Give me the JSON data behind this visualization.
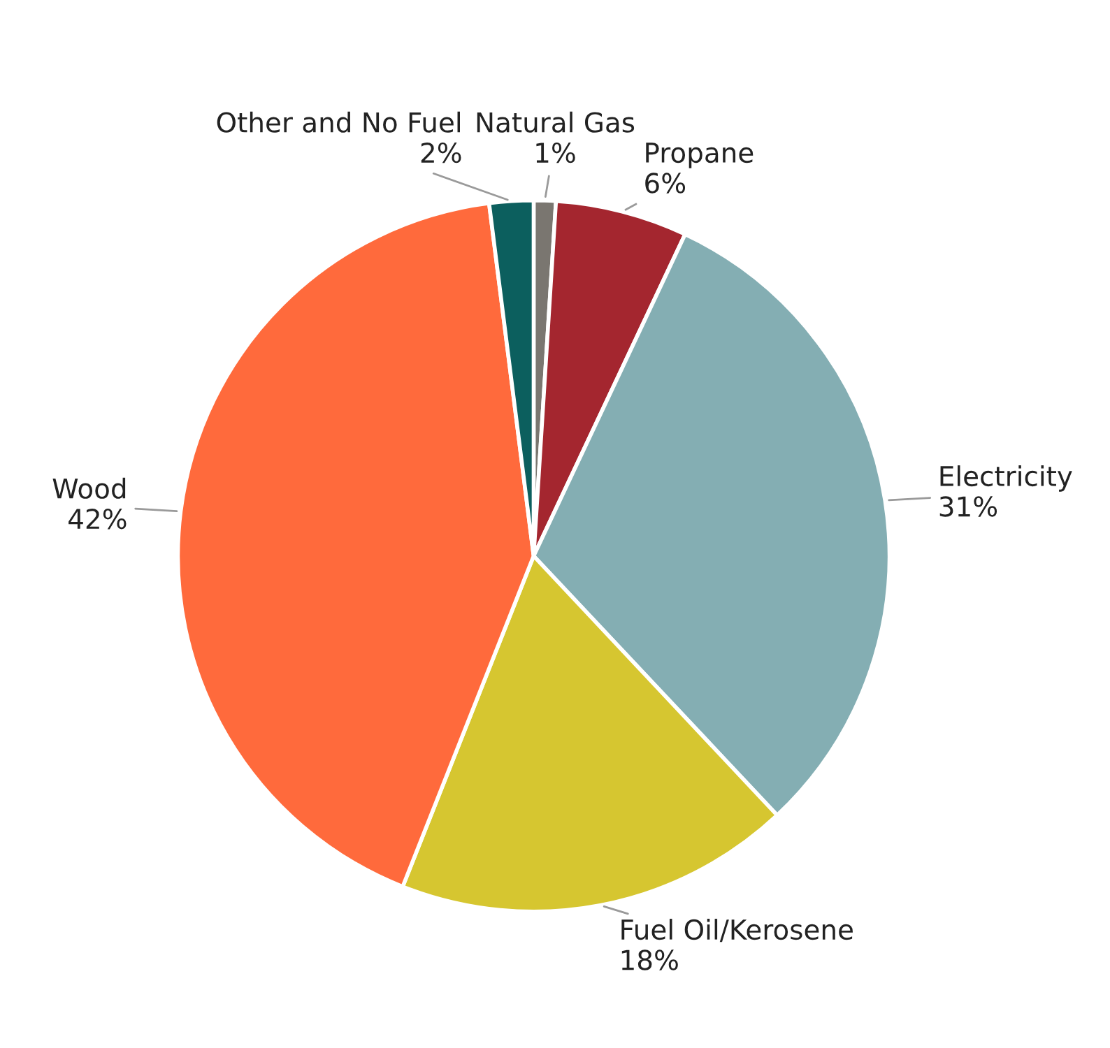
{
  "chart_data": {
    "type": "pie",
    "categories": [
      "Natural Gas",
      "Propane",
      "Electricity",
      "Fuel Oil/Kerosene",
      "Wood",
      "Other and No Fuel"
    ],
    "values": [
      1,
      6,
      31,
      18,
      42,
      2
    ],
    "colors": [
      "#7a7670",
      "#a4262f",
      "#84aeb3",
      "#d6c630",
      "#ff6a3c",
      "#0c5f5e"
    ],
    "value_labels": [
      "1%",
      "6%",
      "31%",
      "18%",
      "42%",
      "2%"
    ]
  }
}
